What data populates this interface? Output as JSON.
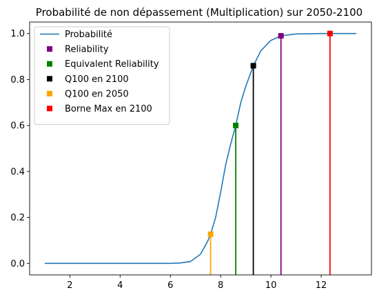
{
  "chart_data": {
    "type": "line",
    "title": "Probabilité de non dépassement (Multiplication) sur 2050-2100",
    "xlabel": "",
    "ylabel": "",
    "xlim": [
      0.4,
      14.0
    ],
    "ylim": [
      -0.05,
      1.05
    ],
    "x_ticks": [
      2,
      4,
      6,
      8,
      10,
      12
    ],
    "y_ticks": [
      0.0,
      0.2,
      0.4,
      0.6,
      0.8,
      1.0
    ],
    "x_tick_labels": [
      "2",
      "4",
      "6",
      "8",
      "10",
      "12"
    ],
    "y_tick_labels": [
      "0.0",
      "0.2",
      "0.4",
      "0.6",
      "0.8",
      "1.0"
    ],
    "grid": false,
    "legend_position": "top-left",
    "curve": {
      "name": "Probabilité",
      "color": "#1f77b4",
      "points": [
        [
          1.0,
          0.0
        ],
        [
          6.0,
          0.0
        ],
        [
          6.4,
          0.002
        ],
        [
          6.8,
          0.008
        ],
        [
          7.2,
          0.04
        ],
        [
          7.5,
          0.1
        ],
        [
          7.6,
          0.127
        ],
        [
          7.8,
          0.2
        ],
        [
          8.0,
          0.31
        ],
        [
          8.2,
          0.43
        ],
        [
          8.4,
          0.52
        ],
        [
          8.6,
          0.6
        ],
        [
          8.8,
          0.7
        ],
        [
          9.0,
          0.77
        ],
        [
          9.3,
          0.86
        ],
        [
          9.6,
          0.925
        ],
        [
          10.0,
          0.97
        ],
        [
          10.4,
          0.99
        ],
        [
          11.0,
          0.998
        ],
        [
          12.0,
          1.0
        ],
        [
          13.4,
          1.0
        ]
      ]
    },
    "markers": [
      {
        "name": "Reliability",
        "x": 10.4,
        "y": 0.99,
        "color": "#800080"
      },
      {
        "name": "Equivalent Reliability",
        "x": 8.6,
        "y": 0.6,
        "color": "#008000"
      },
      {
        "name": "Q100 en 2100",
        "x": 9.3,
        "y": 0.86,
        "color": "#000000"
      },
      {
        "name": "Q100 en 2050",
        "x": 7.6,
        "y": 0.127,
        "color": "#ffa500"
      },
      {
        "name": "Borne Max en 2100",
        "x": 12.35,
        "y": 1.0,
        "color": "#ff0000"
      }
    ]
  }
}
